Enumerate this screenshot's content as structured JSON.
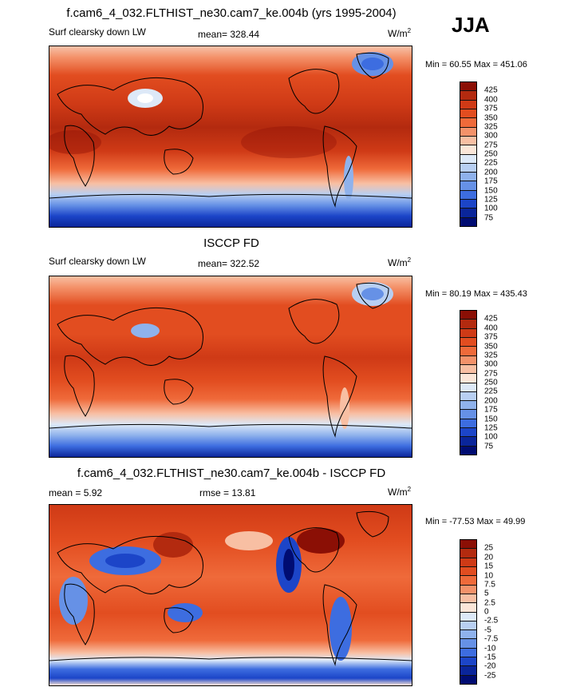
{
  "season": "JJA",
  "panels": [
    {
      "title": "f.cam6_4_032.FLTHIST_ne30.cam7_ke.004b (yrs 1995-2004)",
      "variable": "Surf clearsky down LW",
      "stat_text": "mean= 328.44",
      "units": "W/m",
      "units_exp": "2",
      "minmax": "Min =  60.55 Max = 451.06"
    },
    {
      "title": "ISCCP FD",
      "variable": "Surf clearsky down LW",
      "stat_text": "mean= 322.52",
      "units": "W/m",
      "units_exp": "2",
      "minmax": "Min =  80.19 Max = 435.43"
    },
    {
      "title": "f.cam6_4_032.FLTHIST_ne30.cam7_ke.004b - ISCCP FD",
      "variable": "mean =   5.92",
      "stat_text": "rmse =  13.81",
      "units": "W/m",
      "units_exp": "2",
      "minmax": "Min = -77.53 Max =  49.99"
    }
  ],
  "chart_data": [
    {
      "type": "heatmap",
      "title": "f.cam6_4_032.FLTHIST_ne30.cam7_ke.004b (yrs 1995-2004)",
      "subtitle": "Surf clearsky down LW",
      "mean": 328.44,
      "min": 60.55,
      "max": 451.06,
      "units": "W/m2",
      "colorbar_levels": [
        "425",
        "400",
        "375",
        "350",
        "325",
        "300",
        "275",
        "250",
        "225",
        "200",
        "175",
        "150",
        "125",
        "100",
        "75"
      ],
      "colorbar_colors": [
        "#8b0f05",
        "#b32a0f",
        "#cf3a16",
        "#e24d20",
        "#ef6a3a",
        "#f4926a",
        "#f8bfa3",
        "#fbe6d8",
        "#dde9f8",
        "#b8cff2",
        "#8fb2ec",
        "#6691e6",
        "#3d6de0",
        "#1c45c8",
        "#0a259a",
        "#000c72"
      ]
    },
    {
      "type": "heatmap",
      "title": "ISCCP FD",
      "subtitle": "Surf clearsky down LW",
      "mean": 322.52,
      "min": 80.19,
      "max": 435.43,
      "units": "W/m2",
      "colorbar_levels": [
        "425",
        "400",
        "375",
        "350",
        "325",
        "300",
        "275",
        "250",
        "225",
        "200",
        "175",
        "150",
        "125",
        "100",
        "75"
      ],
      "colorbar_colors": [
        "#8b0f05",
        "#b32a0f",
        "#cf3a16",
        "#e24d20",
        "#ef6a3a",
        "#f4926a",
        "#f8bfa3",
        "#fbe6d8",
        "#dde9f8",
        "#b8cff2",
        "#8fb2ec",
        "#6691e6",
        "#3d6de0",
        "#1c45c8",
        "#0a259a",
        "#000c72"
      ]
    },
    {
      "type": "heatmap",
      "title": "f.cam6_4_032.FLTHIST_ne30.cam7_ke.004b - ISCCP FD",
      "mean": 5.92,
      "rmse": 13.81,
      "min": -77.53,
      "max": 49.99,
      "units": "W/m2",
      "colorbar_levels": [
        "25",
        "20",
        "15",
        "10",
        "7.5",
        "5",
        "2.5",
        "0",
        "-2.5",
        "-5",
        "-7.5",
        "-10",
        "-15",
        "-20",
        "-25"
      ],
      "colorbar_colors": [
        "#8b0f05",
        "#b32a0f",
        "#cf3a16",
        "#e24d20",
        "#ef6a3a",
        "#f4926a",
        "#f8bfa3",
        "#fbe6d8",
        "#dde9f8",
        "#b8cff2",
        "#8fb2ec",
        "#6691e6",
        "#3d6de0",
        "#1c45c8",
        "#0a259a",
        "#000c72"
      ]
    }
  ]
}
